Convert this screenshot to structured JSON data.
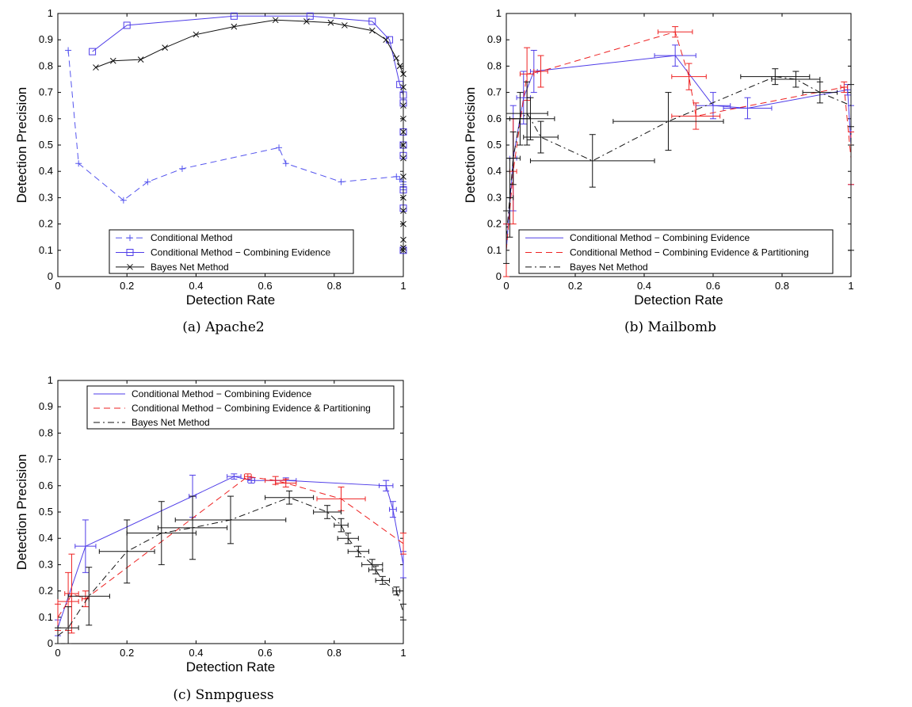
{
  "figure": {
    "captions": [
      "(a) Apache2",
      "(b) Mailbomb",
      "(c) Snmpguess"
    ]
  },
  "colors": {
    "conditional": "#5555ee",
    "combining": "#4f3de8",
    "partitioning": "#ee2222",
    "bayes": "#111111",
    "bayes_dashdot": "#111111"
  },
  "chart_data": [
    {
      "type": "line",
      "caption": "(a) Apache2",
      "xlabel": "Detection Rate",
      "ylabel": "Detection Precision",
      "xlim": [
        0,
        1
      ],
      "ylim": [
        0,
        1
      ],
      "xticks": [
        "0",
        "0.2",
        "0.4",
        "0.6",
        "0.8",
        "1"
      ],
      "yticks": [
        "0",
        "0.1",
        "0.2",
        "0.3",
        "0.4",
        "0.5",
        "0.6",
        "0.7",
        "0.8",
        "0.9",
        "1"
      ],
      "legend_position": "bottom-center",
      "series": [
        {
          "name": "Conditional Method",
          "style": "dashed",
          "marker": "plus",
          "color_key": "conditional",
          "x": [
            0.03,
            0.06,
            0.19,
            0.26,
            0.36,
            0.64,
            0.66,
            0.82,
            0.98,
            0.99,
            1.0,
            1.0,
            1.0,
            1.0
          ],
          "y": [
            0.86,
            0.43,
            0.29,
            0.36,
            0.41,
            0.49,
            0.43,
            0.36,
            0.38,
            0.37,
            0.36,
            0.35,
            0.34,
            0.33
          ]
        },
        {
          "name": "Conditional Method − Combining Evidence",
          "style": "solid",
          "marker": "square",
          "color_key": "combining",
          "x": [
            0.1,
            0.2,
            0.51,
            0.73,
            0.91,
            0.96,
            0.99,
            1.0,
            1.0,
            1.0,
            1.0,
            1.0,
            1.0,
            1.0,
            1.0
          ],
          "y": [
            0.855,
            0.955,
            0.99,
            0.99,
            0.97,
            0.9,
            0.73,
            0.69,
            0.66,
            0.55,
            0.5,
            0.46,
            0.33,
            0.26,
            0.1
          ]
        },
        {
          "name": "Bayes Net Method",
          "style": "solid",
          "marker": "x",
          "color_key": "bayes",
          "x": [
            0.11,
            0.16,
            0.24,
            0.31,
            0.4,
            0.51,
            0.63,
            0.72,
            0.79,
            0.83,
            0.91,
            0.95,
            0.98,
            0.99,
            1.0,
            1.0,
            1.0,
            1.0,
            1.0,
            1.0,
            1.0,
            1.0,
            1.0,
            1.0,
            1.0,
            1.0,
            1.0,
            1.0
          ],
          "y": [
            0.795,
            0.82,
            0.825,
            0.87,
            0.92,
            0.95,
            0.975,
            0.97,
            0.965,
            0.955,
            0.935,
            0.9,
            0.83,
            0.8,
            0.77,
            0.72,
            0.65,
            0.6,
            0.55,
            0.5,
            0.45,
            0.38,
            0.3,
            0.25,
            0.2,
            0.14,
            0.11,
            0.1
          ]
        }
      ]
    },
    {
      "type": "line",
      "caption": "(b) Mailbomb",
      "xlabel": "Detection Rate",
      "ylabel": "Detection Precision",
      "xlim": [
        0,
        1
      ],
      "ylim": [
        0,
        1
      ],
      "xticks": [
        "0",
        "0.2",
        "0.4",
        "0.6",
        "0.8",
        "1"
      ],
      "yticks": [
        "0",
        "0.1",
        "0.2",
        "0.3",
        "0.4",
        "0.5",
        "0.6",
        "0.7",
        "0.8",
        "0.9",
        "1"
      ],
      "legend_position": "bottom-center",
      "series": [
        {
          "name": "Conditional Method − Combining Evidence",
          "style": "solid",
          "marker": "errorbar",
          "color_key": "combining",
          "x": [
            0.0,
            0.02,
            0.05,
            0.08,
            0.49,
            0.6,
            0.7,
            0.99,
            1.0
          ],
          "y": [
            0.1,
            0.45,
            0.68,
            0.78,
            0.84,
            0.65,
            0.64,
            0.71,
            0.5
          ],
          "xerr": [
            0.0,
            0.01,
            0.02,
            0.01,
            0.06,
            0.05,
            0.07,
            0.01,
            0.0
          ],
          "yerr": [
            0.1,
            0.2,
            0.1,
            0.08,
            0.04,
            0.05,
            0.04,
            0.02,
            0.15
          ]
        },
        {
          "name": "Conditional Method − Combining Evidence & Partitioning",
          "style": "dashed",
          "marker": "errorbar",
          "color_key": "partitioning",
          "x": [
            0.0,
            0.02,
            0.06,
            0.1,
            0.49,
            0.53,
            0.55,
            0.98,
            1.0
          ],
          "y": [
            0.1,
            0.4,
            0.77,
            0.78,
            0.93,
            0.76,
            0.61,
            0.72,
            0.45
          ],
          "xerr": [
            0.0,
            0.01,
            0.02,
            0.02,
            0.05,
            0.05,
            0.07,
            0.01,
            0.0
          ],
          "yerr": [
            0.1,
            0.2,
            0.1,
            0.06,
            0.02,
            0.05,
            0.05,
            0.02,
            0.1
          ]
        },
        {
          "name": "Bayes Net Method",
          "style": "dashdot",
          "marker": "errorbar",
          "color_key": "bayes_dashdot",
          "x": [
            0.0,
            0.01,
            0.02,
            0.04,
            0.06,
            0.07,
            0.1,
            0.25,
            0.47,
            0.78,
            0.84,
            0.91,
            1.0,
            1.0
          ],
          "y": [
            0.15,
            0.3,
            0.45,
            0.6,
            0.62,
            0.6,
            0.53,
            0.44,
            0.59,
            0.76,
            0.75,
            0.7,
            0.65,
            0.3
          ],
          "xerr": [
            0.0,
            0.01,
            0.02,
            0.03,
            0.06,
            0.07,
            0.05,
            0.18,
            0.16,
            0.1,
            0.07,
            0.05,
            0.0,
            0.0
          ],
          "yerr": [
            0.1,
            0.15,
            0.1,
            0.1,
            0.12,
            0.08,
            0.06,
            0.1,
            0.11,
            0.03,
            0.03,
            0.04,
            0.08,
            0.2
          ]
        }
      ]
    },
    {
      "type": "line",
      "caption": "(c) Snmpguess",
      "xlabel": "Detection Rate",
      "ylabel": "Detection Precision",
      "xlim": [
        0,
        1
      ],
      "ylim": [
        0,
        1
      ],
      "xticks": [
        "0",
        "0.2",
        "0.4",
        "0.6",
        "0.8",
        "1"
      ],
      "yticks": [
        "0",
        "0.1",
        "0.2",
        "0.3",
        "0.4",
        "0.5",
        "0.6",
        "0.7",
        "0.8",
        "0.9",
        "1"
      ],
      "legend_position": "top-center",
      "series": [
        {
          "name": "Conditional Method − Combining Evidence",
          "style": "solid",
          "marker": "errorbar",
          "color_key": "combining",
          "x": [
            0.0,
            0.08,
            0.39,
            0.51,
            0.56,
            0.66,
            0.95,
            0.97,
            1.0
          ],
          "y": [
            0.06,
            0.37,
            0.56,
            0.635,
            0.62,
            0.62,
            0.6,
            0.51,
            0.3
          ],
          "xerr": [
            0.0,
            0.03,
            0.01,
            0.02,
            0.01,
            0.03,
            0.02,
            0.01,
            0.0
          ],
          "yerr": [
            0.03,
            0.1,
            0.08,
            0.01,
            0.01,
            0.01,
            0.02,
            0.03,
            0.05
          ]
        },
        {
          "name": "Conditional Method − Combining Evidence & Partitioning",
          "style": "dashed",
          "marker": "errorbar",
          "color_key": "partitioning",
          "x": [
            0.0,
            0.03,
            0.04,
            0.08,
            0.55,
            0.63,
            0.66,
            0.82,
            1.0
          ],
          "y": [
            0.1,
            0.16,
            0.19,
            0.17,
            0.635,
            0.62,
            0.61,
            0.55,
            0.38
          ],
          "xerr": [
            0.0,
            0.03,
            0.02,
            0.01,
            0.01,
            0.03,
            0.03,
            0.07,
            0.0
          ],
          "yerr": [
            0.05,
            0.11,
            0.15,
            0.03,
            0.01,
            0.015,
            0.015,
            0.045,
            0.04
          ]
        },
        {
          "name": "Bayes Net Method",
          "style": "dashdot",
          "marker": "errorbar",
          "color_key": "bayes_dashdot",
          "x": [
            0.0,
            0.03,
            0.09,
            0.2,
            0.3,
            0.39,
            0.5,
            0.67,
            0.78,
            0.82,
            0.84,
            0.87,
            0.91,
            0.92,
            0.94,
            0.98,
            1.0
          ],
          "y": [
            0.03,
            0.06,
            0.18,
            0.35,
            0.42,
            0.44,
            0.47,
            0.555,
            0.5,
            0.45,
            0.4,
            0.35,
            0.3,
            0.28,
            0.24,
            0.2,
            0.12
          ],
          "xerr": [
            0.0,
            0.03,
            0.06,
            0.08,
            0.1,
            0.1,
            0.16,
            0.07,
            0.04,
            0.02,
            0.03,
            0.03,
            0.03,
            0.02,
            0.02,
            0.01,
            0.0
          ],
          "yerr": [
            0.03,
            0.08,
            0.11,
            0.12,
            0.12,
            0.12,
            0.09,
            0.025,
            0.025,
            0.025,
            0.02,
            0.02,
            0.02,
            0.015,
            0.015,
            0.015,
            0.03
          ]
        }
      ]
    }
  ]
}
